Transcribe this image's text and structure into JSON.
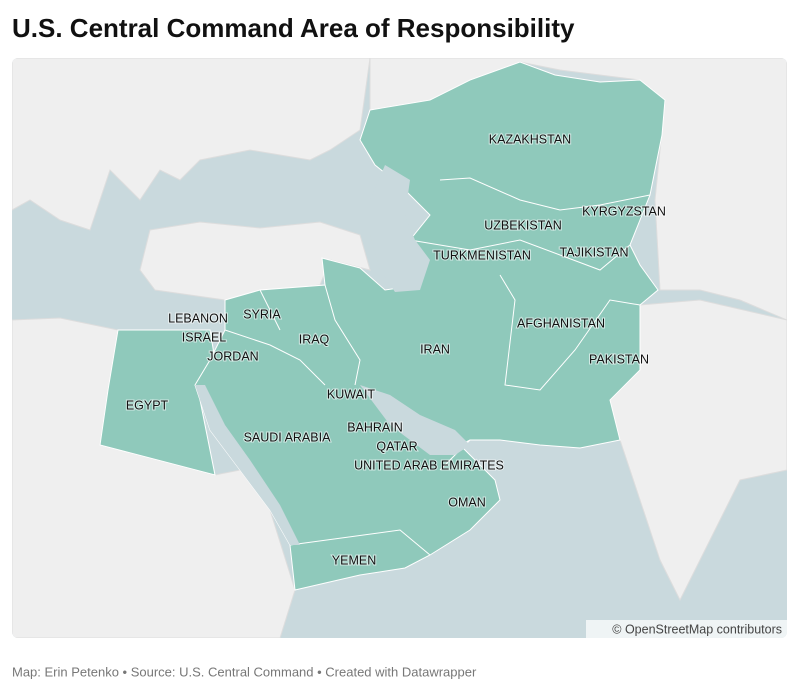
{
  "header": {
    "title": "U.S. Central Command Area of Responsibility"
  },
  "map": {
    "labels": [
      {
        "text": "KAZAKHSTAN"
      },
      {
        "text": "KYRGYZSTAN"
      },
      {
        "text": "UZBEKISTAN"
      },
      {
        "text": "TURKMENISTAN"
      },
      {
        "text": "TAJIKISTAN"
      },
      {
        "text": "LEBANON"
      },
      {
        "text": "SYRIA"
      },
      {
        "text": "ISRAEL"
      },
      {
        "text": "IRAQ"
      },
      {
        "text": "IRAN"
      },
      {
        "text": "AFGHANISTAN"
      },
      {
        "text": "PAKISTAN"
      },
      {
        "text": "JORDAN"
      },
      {
        "text": "KUWAIT"
      },
      {
        "text": "EGYPT"
      },
      {
        "text": "BAHRAIN"
      },
      {
        "text": "SAUDI ARABIA"
      },
      {
        "text": "QATAR"
      },
      {
        "text": "UNITED ARAB EMIRATES"
      },
      {
        "text": "OMAN"
      },
      {
        "text": "YEMEN"
      }
    ],
    "attribution": "© OpenStreetMap contributors"
  },
  "footer": {
    "credits": "Map: Erin Petenko • Source: U.S. Central Command • Created with Datawrapper"
  }
}
